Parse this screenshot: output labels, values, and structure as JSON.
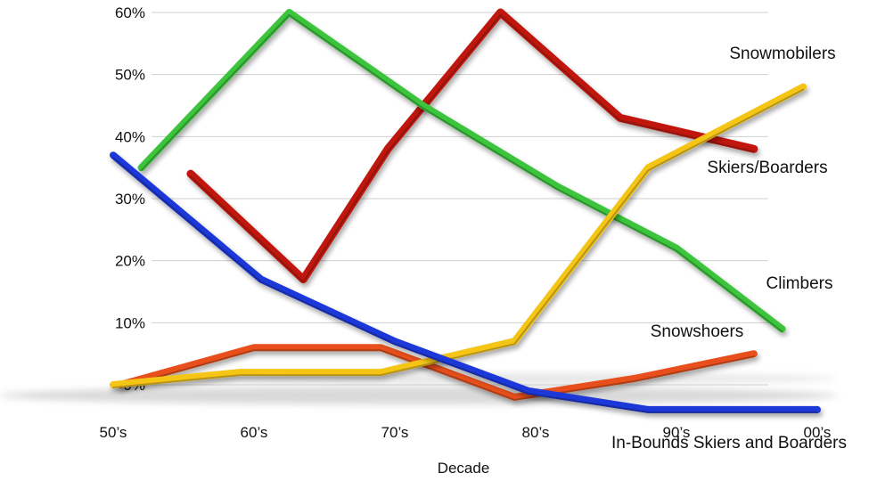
{
  "chart_data": {
    "type": "line",
    "title": "",
    "xlabel": "Decade",
    "ylabel": "",
    "categories": [
      "50’s",
      "60’s",
      "70’s",
      "80’s",
      "90’s",
      "00’s"
    ],
    "y_ticks": [
      "0%",
      "10%",
      "20%",
      "30%",
      "40%",
      "50%",
      "60%"
    ],
    "ylim": [
      0,
      60
    ],
    "grid": true,
    "series": [
      {
        "name": "Snowmobilers",
        "color": "#f5c518",
        "points": [
          [
            0.0,
            0
          ],
          [
            0.9,
            2
          ],
          [
            1.9,
            2
          ],
          [
            2.85,
            7
          ],
          [
            3.8,
            35
          ],
          [
            4.9,
            48
          ]
        ]
      },
      {
        "name": "Skiers/Boarders",
        "color": "#c0180c",
        "points": [
          [
            0.55,
            34
          ],
          [
            1.35,
            17
          ],
          [
            1.95,
            38
          ],
          [
            2.75,
            60
          ],
          [
            3.6,
            43
          ],
          [
            4.55,
            38
          ]
        ]
      },
      {
        "name": "Climbers",
        "color": "#3cc43c",
        "points": [
          [
            0.2,
            35
          ],
          [
            1.25,
            60
          ],
          [
            2.2,
            45
          ],
          [
            3.15,
            32
          ],
          [
            4.0,
            22
          ],
          [
            4.75,
            9
          ]
        ]
      },
      {
        "name": "Snowshoers",
        "color": "#e8501a",
        "points": [
          [
            0.05,
            0
          ],
          [
            1.0,
            6
          ],
          [
            1.9,
            6
          ],
          [
            2.85,
            -2
          ],
          [
            3.7,
            1
          ],
          [
            4.55,
            5
          ]
        ]
      },
      {
        "name": "In-Bounds Skiers and Boarders",
        "color": "#1c39d8",
        "points": [
          [
            0.0,
            37
          ],
          [
            1.05,
            17
          ],
          [
            2.0,
            7
          ],
          [
            2.95,
            -1
          ],
          [
            3.8,
            -4
          ],
          [
            5.0,
            -4
          ]
        ]
      }
    ]
  }
}
